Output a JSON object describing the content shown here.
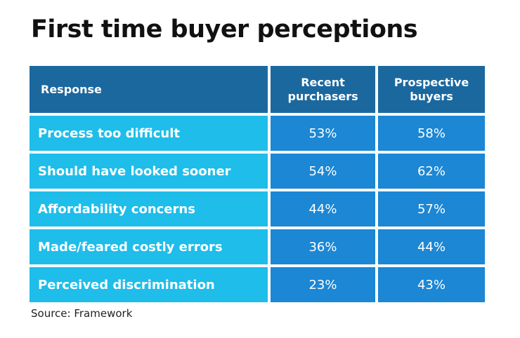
{
  "title": "First time buyer perceptions",
  "source": "Source: Framework",
  "colors": {
    "header": "#1b689f",
    "label_cell": "#1ebdea",
    "value_cell": "#1b87d5"
  },
  "chart_data": {
    "type": "table",
    "title": "First time buyer perceptions",
    "columns": [
      "Response",
      "Recent purchasers",
      "Prospective buyers"
    ],
    "rows": [
      {
        "response": "Process too difficult",
        "recent": "53%",
        "prospective": "58%"
      },
      {
        "response": "Should have looked sooner",
        "recent": "54%",
        "prospective": "62%"
      },
      {
        "response": "Affordability concerns",
        "recent": "44%",
        "prospective": "57%"
      },
      {
        "response": "Made/feared costly errors",
        "recent": "36%",
        "prospective": "44%"
      },
      {
        "response": "Perceived discrimination",
        "recent": "23%",
        "prospective": "43%"
      }
    ]
  }
}
